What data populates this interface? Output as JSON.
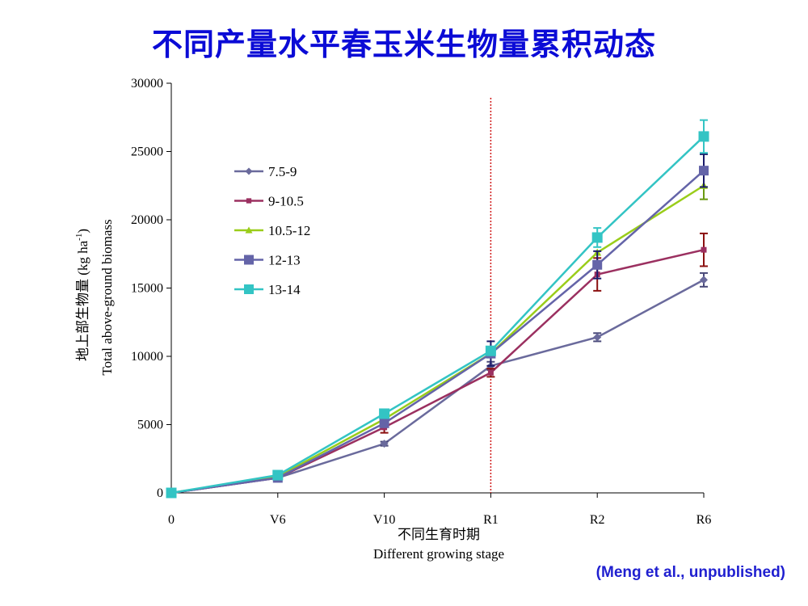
{
  "page": {
    "title": "不同产量水平春玉米生物量累积动态",
    "citation": "(Meng et al., unpublished)"
  },
  "chart_data": {
    "type": "line",
    "categories": [
      "0",
      "V6",
      "V10",
      "R1",
      "R2",
      "R6"
    ],
    "xlabel_zh": "不同生育时期",
    "xlabel_en": "Different growing stage",
    "ylabel_zh": "地上部生物量 (kg ha",
    "ylabel_en": "Total above-ground biomass",
    "ylabel_unit_sup": "-1",
    "ylabel_unit_close": ")",
    "ylim": [
      0,
      30000
    ],
    "yticks": [
      0,
      5000,
      10000,
      15000,
      20000,
      25000,
      30000
    ],
    "ytick_labels": [
      "0",
      "5000",
      "10000",
      "15000",
      "20000",
      "25000",
      "30000"
    ],
    "vline_at": "R1",
    "vline_color": "#d11a1a",
    "legend_position": "upper-left",
    "series": [
      {
        "name": "7.5-9",
        "color": "#6a6a9c",
        "marker": "diamond",
        "errcolor": "#4a4a7a",
        "values": [
          0,
          1100,
          3600,
          9300,
          11400,
          15600
        ],
        "errors": [
          0,
          0,
          150,
          300,
          300,
          500
        ]
      },
      {
        "name": "9-10.5",
        "color": "#9b3060",
        "marker": "square-s",
        "errcolor": "#8b1010",
        "values": [
          0,
          1100,
          4800,
          8800,
          16000,
          17800
        ],
        "errors": [
          0,
          0,
          400,
          300,
          1200,
          1200
        ]
      },
      {
        "name": "10.5-12",
        "color": "#9acd1a",
        "marker": "triangle",
        "errcolor": "#6a9a10",
        "values": [
          0,
          1200,
          5400,
          10200,
          17600,
          22500
        ],
        "errors": [
          0,
          0,
          0,
          0,
          0,
          1000
        ]
      },
      {
        "name": "12-13",
        "color": "#6464a8",
        "marker": "square",
        "errcolor": "#1a1a6a",
        "values": [
          0,
          1100,
          5100,
          10200,
          16700,
          23600
        ],
        "errors": [
          0,
          0,
          0,
          900,
          1000,
          1200
        ]
      },
      {
        "name": "13-14",
        "color": "#33c4c4",
        "marker": "square",
        "errcolor": "#33c4c4",
        "values": [
          0,
          1300,
          5800,
          10400,
          18700,
          26100
        ],
        "errors": [
          0,
          0,
          0,
          0,
          700,
          1200
        ]
      }
    ]
  }
}
